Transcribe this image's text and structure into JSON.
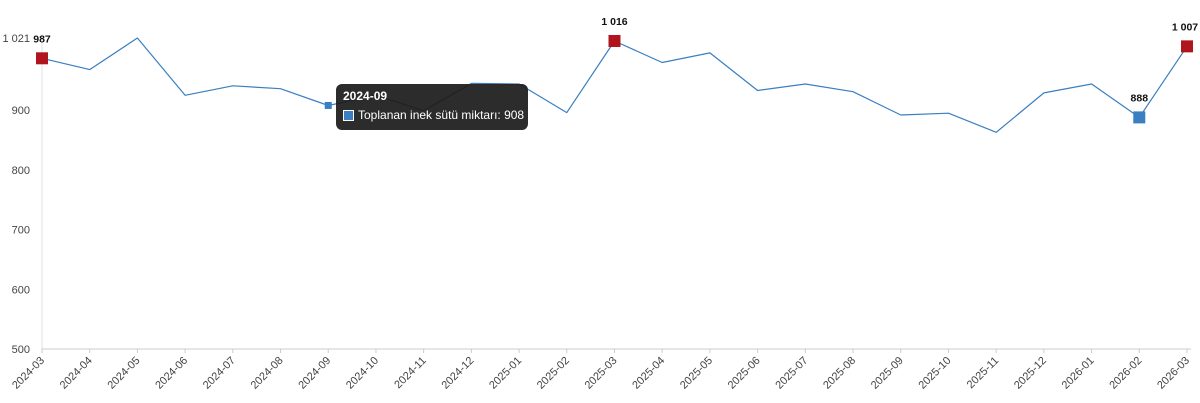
{
  "chart_data": {
    "type": "line",
    "categories": [
      "2024-03",
      "2024-04",
      "2024-05",
      "2024-06",
      "2024-07",
      "2024-08",
      "2024-09",
      "2024-10",
      "2024-11",
      "2024-12",
      "2025-01",
      "2025-02",
      "2025-03",
      "2025-04",
      "2025-05",
      "2025-06",
      "2025-07",
      "2025-08",
      "2025-09",
      "2025-10",
      "2025-11",
      "2025-12",
      "2026-01",
      "2026-02",
      "2026-03"
    ],
    "series": [
      {
        "name": "Toplanan inek sütü miktarı",
        "values": [
          987,
          968,
          1021,
          925,
          941,
          936,
          908,
          925,
          899,
          945,
          944,
          896,
          1016,
          980,
          996,
          933,
          944,
          931,
          892,
          895,
          863,
          929,
          944,
          888,
          1007
        ]
      }
    ],
    "yticks": [
      500,
      600,
      700,
      800,
      900
    ],
    "ytick_labels": [
      "500",
      "600",
      "700",
      "800",
      "900"
    ],
    "ymax_label": "1 021",
    "ylim": [
      500,
      1021
    ],
    "highlighted_points": [
      {
        "index": 0,
        "label": "987",
        "kind": "high"
      },
      {
        "index": 12,
        "label": "1 016",
        "kind": "high"
      },
      {
        "index": 23,
        "label": "888",
        "kind": "low"
      },
      {
        "index": 24,
        "label": "1 007",
        "kind": "high"
      }
    ],
    "line_color": "#3a7fc1",
    "high_marker_color": "#b0151d",
    "low_marker_color": "#3a7fc1"
  },
  "tooltip": {
    "title": "2024-09",
    "text": "Toplanan inek sütü miktarı: 908",
    "color": "#3a7fc1"
  }
}
